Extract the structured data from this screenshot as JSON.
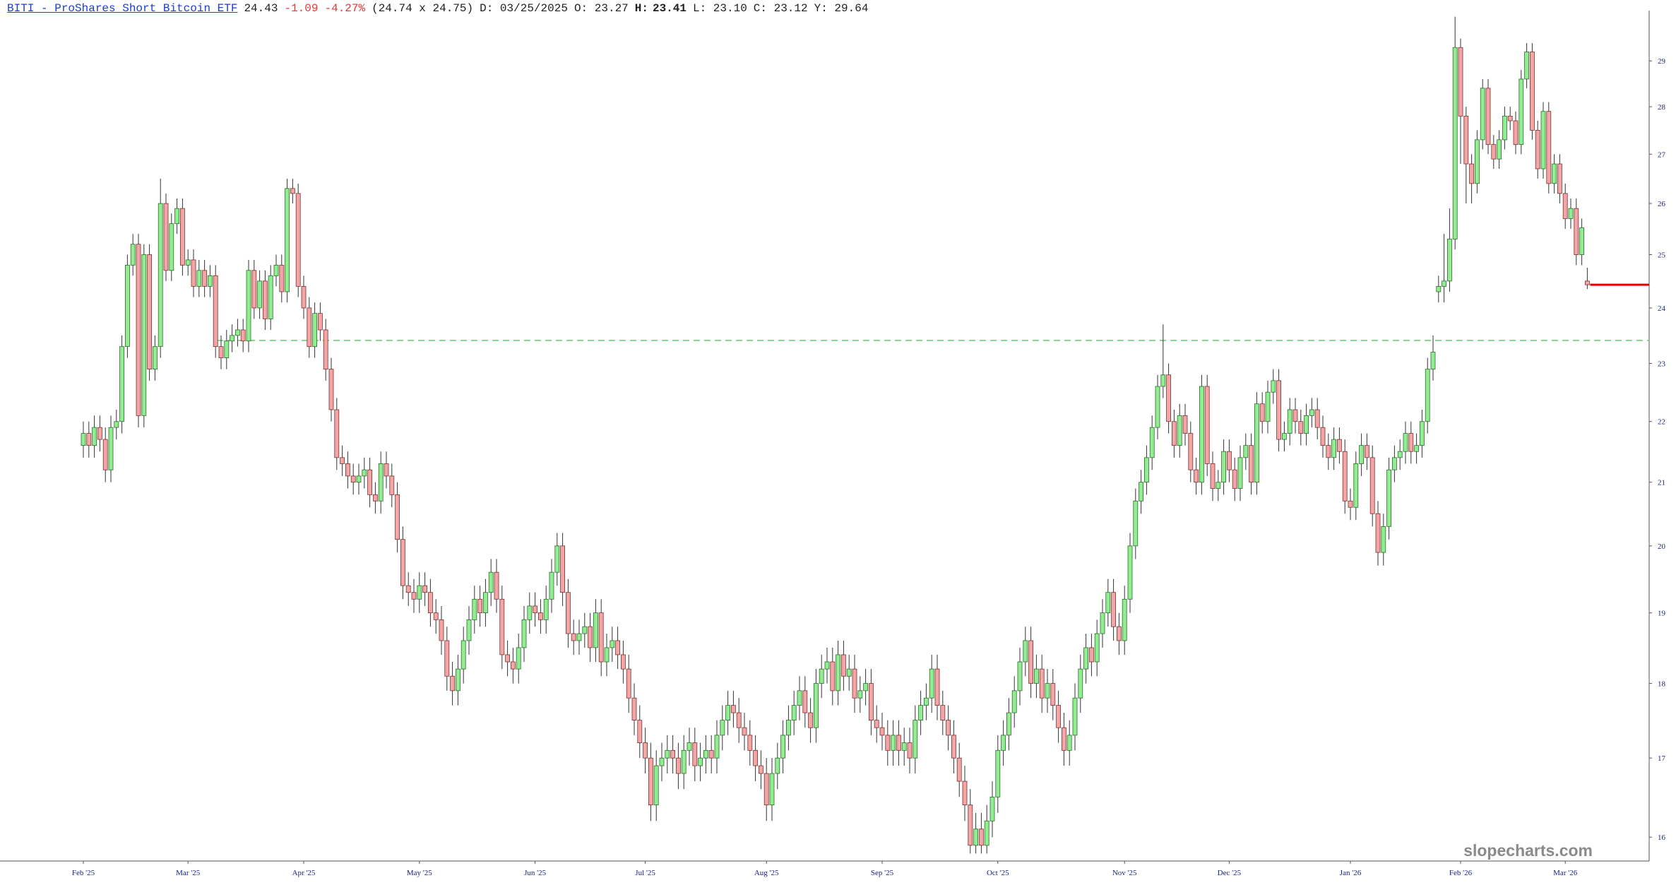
{
  "header": {
    "symbol_link": "BITI - ProShares Short Bitcoin ETF",
    "last": 24.43,
    "change": "-1.09",
    "change_pct": "-4.27%",
    "bid_ask": "(24.74 x 24.75)",
    "date": "D: 03/25/2025",
    "open": "O: 23.27",
    "high_label": "H:",
    "high": 23.41,
    "low": "L: 23.10",
    "close": "C: 23.12",
    "year_high": "Y: 29.64"
  },
  "chart_data": {
    "type": "candlestick",
    "watermark": "slopecharts.com",
    "log_scale": true,
    "up_color": "#90ee90",
    "down_color": "#f4a6a6",
    "last_line_color": "#e00000",
    "hover_line_color": "#66cc66",
    "ylim": [
      15.71,
      30.14
    ],
    "yticks": [
      16,
      17,
      18,
      19,
      20,
      21,
      22,
      23,
      24,
      25,
      26,
      27,
      28,
      29
    ],
    "categories": [
      "Feb '25",
      null,
      null,
      null,
      null,
      null,
      null,
      null,
      null,
      null,
      null,
      null,
      null,
      null,
      null,
      null,
      null,
      null,
      null,
      "Mar '25",
      null,
      null,
      null,
      null,
      null,
      null,
      null,
      null,
      null,
      null,
      null,
      null,
      null,
      null,
      null,
      null,
      null,
      null,
      null,
      null,
      "Apr '25",
      null,
      null,
      null,
      null,
      null,
      null,
      null,
      null,
      null,
      null,
      null,
      null,
      null,
      null,
      null,
      null,
      null,
      null,
      null,
      null,
      "May '25",
      null,
      null,
      null,
      null,
      null,
      null,
      null,
      null,
      null,
      null,
      null,
      null,
      null,
      null,
      null,
      null,
      null,
      null,
      null,
      null,
      "Jun '25",
      null,
      null,
      null,
      null,
      null,
      null,
      null,
      null,
      null,
      null,
      null,
      null,
      null,
      null,
      null,
      null,
      null,
      null,
      null,
      "Jul '25",
      null,
      null,
      null,
      null,
      null,
      null,
      null,
      null,
      null,
      null,
      null,
      null,
      null,
      null,
      null,
      null,
      null,
      null,
      null,
      null,
      null,
      "Aug '25",
      null,
      null,
      null,
      null,
      null,
      null,
      null,
      null,
      null,
      null,
      null,
      null,
      null,
      null,
      null,
      null,
      null,
      null,
      null,
      null,
      "Sep '25",
      null,
      null,
      null,
      null,
      null,
      null,
      null,
      null,
      null,
      null,
      null,
      null,
      null,
      null,
      null,
      null,
      null,
      null,
      null,
      null,
      "Oct '25",
      null,
      null,
      null,
      null,
      null,
      null,
      null,
      null,
      null,
      null,
      null,
      null,
      null,
      null,
      null,
      null,
      null,
      null,
      null,
      null,
      null,
      null,
      "Nov '25",
      null,
      null,
      null,
      null,
      null,
      null,
      null,
      null,
      null,
      null,
      null,
      null,
      null,
      null,
      null,
      null,
      null,
      null,
      "Dec '25",
      null,
      null,
      null,
      null,
      null,
      null,
      null,
      null,
      null,
      null,
      null,
      null,
      null,
      null,
      null,
      null,
      null,
      null,
      null,
      null,
      null,
      "Jan '26",
      null,
      null,
      null,
      null,
      null,
      null,
      null,
      null,
      null,
      null,
      null,
      null,
      null,
      null,
      null,
      null,
      null,
      null,
      null,
      "Feb '26",
      null,
      null,
      null,
      null,
      null,
      null,
      null,
      null,
      null,
      null,
      null,
      null,
      null,
      null,
      null,
      null,
      null,
      null,
      "Mar '26",
      null,
      null,
      null,
      null
    ],
    "open": [
      21.6,
      21.8,
      21.6,
      21.9,
      21.7,
      21.2,
      21.9,
      22.0,
      23.3,
      24.8,
      25.2,
      22.1,
      25.0,
      22.9,
      23.3,
      26.0,
      24.7,
      25.6,
      25.9,
      24.8,
      24.9,
      24.4,
      24.7,
      24.4,
      24.6,
      23.3,
      23.1,
      23.4,
      23.5,
      23.6,
      23.4,
      24.7,
      24.0,
      24.5,
      23.8,
      24.6,
      24.8,
      24.3,
      26.3,
      26.2,
      24.4,
      24.0,
      23.3,
      23.9,
      23.6,
      22.9,
      22.2,
      21.4,
      21.3,
      21.1,
      21.0,
      21.1,
      21.2,
      20.8,
      20.7,
      21.3,
      21.1,
      20.8,
      20.1,
      19.4,
      19.3,
      19.2,
      19.4,
      19.3,
      19.0,
      18.9,
      18.6,
      18.1,
      17.9,
      18.2,
      18.6,
      18.9,
      19.2,
      19.0,
      19.3,
      19.6,
      19.2,
      18.4,
      18.3,
      18.2,
      18.5,
      18.9,
      19.1,
      19.0,
      18.9,
      19.2,
      19.6,
      20.0,
      19.3,
      18.7,
      18.6,
      18.7,
      18.8,
      18.5,
      19.0,
      18.3,
      18.5,
      18.6,
      18.4,
      18.2,
      17.8,
      17.5,
      17.2,
      17.0,
      16.4,
      16.9,
      17.0,
      17.1,
      17.0,
      16.8,
      17.1,
      17.2,
      16.9,
      17.0,
      17.1,
      17.0,
      17.3,
      17.5,
      17.7,
      17.6,
      17.4,
      17.3,
      17.1,
      16.9,
      16.8,
      16.4,
      16.8,
      17.0,
      17.3,
      17.5,
      17.7,
      17.9,
      17.6,
      17.4,
      18.0,
      18.2,
      18.3,
      17.9,
      18.4,
      18.1,
      18.2,
      17.8,
      17.9,
      18.0,
      17.5,
      17.4,
      17.3,
      17.1,
      17.3,
      17.1,
      17.2,
      17.0,
      17.5,
      17.7,
      17.8,
      18.2,
      17.7,
      17.5,
      17.3,
      17.0,
      16.7,
      16.4,
      15.9,
      16.1,
      15.9,
      16.2,
      16.5,
      17.1,
      17.3,
      17.6,
      17.9,
      18.3,
      18.6,
      18.0,
      18.2,
      17.8,
      18.0,
      17.7,
      17.4,
      17.1,
      17.3,
      17.8,
      18.2,
      18.5,
      18.3,
      18.7,
      19.0,
      19.3,
      18.8,
      18.6,
      19.2,
      20.0,
      20.7,
      21.0,
      21.4,
      21.9,
      22.6,
      22.8,
      22.0,
      21.6,
      22.1,
      21.8,
      21.2,
      21.0,
      22.6,
      21.3,
      20.9,
      21.0,
      21.5,
      21.2,
      20.9,
      21.4,
      21.6,
      21.0,
      22.3,
      22.0,
      22.5,
      22.7,
      21.7,
      21.8,
      22.2,
      22.0,
      21.8,
      22.1,
      22.2,
      21.9,
      21.6,
      21.4,
      21.7,
      21.5,
      20.7,
      20.6,
      21.3,
      21.6,
      21.4,
      20.5,
      19.9,
      20.3,
      21.2,
      21.4,
      21.5,
      21.8,
      21.5,
      21.6,
      22.0,
      22.9,
      24.3,
      24.4,
      24.5,
      25.3,
      29.3,
      27.8,
      26.8,
      26.4,
      27.3,
      28.4,
      27.2,
      26.9,
      27.3,
      27.8,
      27.7,
      27.2,
      28.6,
      29.2,
      27.5,
      26.7,
      27.9,
      26.4,
      26.8,
      26.2,
      25.7,
      25.9,
      25.0,
      24.5
    ],
    "high": [
      22.0,
      22.0,
      22.1,
      22.1,
      21.9,
      22.1,
      22.2,
      23.5,
      25.0,
      25.4,
      25.4,
      25.2,
      25.2,
      23.5,
      26.5,
      26.2,
      25.8,
      26.1,
      26.1,
      25.1,
      25.1,
      24.9,
      24.9,
      24.8,
      24.8,
      23.5,
      23.6,
      23.7,
      23.8,
      23.8,
      24.9,
      24.9,
      24.7,
      24.7,
      24.8,
      25.0,
      25.0,
      26.5,
      26.5,
      26.4,
      24.6,
      24.2,
      24.1,
      24.1,
      23.8,
      23.1,
      22.4,
      21.6,
      21.5,
      21.3,
      21.3,
      21.4,
      21.4,
      21.0,
      21.5,
      21.5,
      21.3,
      21.0,
      20.3,
      19.6,
      19.5,
      19.6,
      19.6,
      19.5,
      19.2,
      19.1,
      18.8,
      18.3,
      18.4,
      18.8,
      19.1,
      19.4,
      19.4,
      19.5,
      19.8,
      19.8,
      19.4,
      18.6,
      18.5,
      18.7,
      19.1,
      19.3,
      19.3,
      19.2,
      19.4,
      19.8,
      20.2,
      20.2,
      19.5,
      18.9,
      18.9,
      19.0,
      19.0,
      19.2,
      19.2,
      18.7,
      18.8,
      18.8,
      18.6,
      18.4,
      18.0,
      17.7,
      17.4,
      17.2,
      17.1,
      17.2,
      17.3,
      17.3,
      17.2,
      17.3,
      17.4,
      17.4,
      17.2,
      17.3,
      17.3,
      17.5,
      17.7,
      17.9,
      17.9,
      17.8,
      17.6,
      17.5,
      17.3,
      17.1,
      17.0,
      17.0,
      17.2,
      17.5,
      17.7,
      17.9,
      18.1,
      18.1,
      17.8,
      18.2,
      18.4,
      18.5,
      18.5,
      18.6,
      18.6,
      18.4,
      18.4,
      18.1,
      18.2,
      18.2,
      17.7,
      17.6,
      17.5,
      17.5,
      17.5,
      17.4,
      17.4,
      17.7,
      17.9,
      18.0,
      18.4,
      18.4,
      17.9,
      17.7,
      17.5,
      17.2,
      16.9,
      16.6,
      16.3,
      16.3,
      16.4,
      16.7,
      17.3,
      17.5,
      17.8,
      18.1,
      18.5,
      18.8,
      18.8,
      18.4,
      18.4,
      18.2,
      18.2,
      17.9,
      17.6,
      17.5,
      18.0,
      18.4,
      18.7,
      18.7,
      18.9,
      19.2,
      19.5,
      19.5,
      19.0,
      19.4,
      20.2,
      20.9,
      21.2,
      21.6,
      22.1,
      22.8,
      23.7,
      23.0,
      22.2,
      22.3,
      22.3,
      22.0,
      21.4,
      22.8,
      22.8,
      21.5,
      21.2,
      21.7,
      21.7,
      21.4,
      21.6,
      21.8,
      21.8,
      22.5,
      22.5,
      22.7,
      22.9,
      22.9,
      22.0,
      22.4,
      22.4,
      22.2,
      22.3,
      22.4,
      22.4,
      22.1,
      21.8,
      21.9,
      21.9,
      21.7,
      20.9,
      21.5,
      21.8,
      21.8,
      21.6,
      20.7,
      20.5,
      21.4,
      21.6,
      21.7,
      22.0,
      22.0,
      21.8,
      22.2,
      23.1,
      23.5,
      24.6,
      25.4,
      25.9,
      30.0,
      29.5,
      28.0,
      27.0,
      27.5,
      28.6,
      28.6,
      27.4,
      27.5,
      28.0,
      28.0,
      27.9,
      28.8,
      29.4,
      29.4,
      27.7,
      28.1,
      28.1,
      27.0,
      27.0,
      26.4,
      26.1,
      26.1,
      25.7,
      24.75
    ],
    "low": [
      21.4,
      21.4,
      21.4,
      21.5,
      21.0,
      21.0,
      21.7,
      21.8,
      23.1,
      24.6,
      21.9,
      21.9,
      22.7,
      22.7,
      23.1,
      24.5,
      24.5,
      25.4,
      24.6,
      24.6,
      24.2,
      24.2,
      24.2,
      24.2,
      23.1,
      22.9,
      22.9,
      23.2,
      23.3,
      23.2,
      23.2,
      23.8,
      23.8,
      23.6,
      23.6,
      24.4,
      24.1,
      24.1,
      26.0,
      24.2,
      23.8,
      23.1,
      23.1,
      23.4,
      22.7,
      22.0,
      21.2,
      21.1,
      20.9,
      20.8,
      20.8,
      20.9,
      20.6,
      20.5,
      20.5,
      20.9,
      20.6,
      19.9,
      19.2,
      19.1,
      19.0,
      19.0,
      19.1,
      18.8,
      18.7,
      18.4,
      17.9,
      17.7,
      17.7,
      18.0,
      18.4,
      18.7,
      18.8,
      18.8,
      19.1,
      19.0,
      18.2,
      18.1,
      18.0,
      18.0,
      18.3,
      18.7,
      18.8,
      18.7,
      18.7,
      19.0,
      19.4,
      19.1,
      18.5,
      18.4,
      18.4,
      18.5,
      18.3,
      18.3,
      18.1,
      18.1,
      18.3,
      18.2,
      18.0,
      17.6,
      17.3,
      17.0,
      16.8,
      16.2,
      16.2,
      16.7,
      16.8,
      16.8,
      16.6,
      16.6,
      16.9,
      16.7,
      16.7,
      16.8,
      16.8,
      16.8,
      17.1,
      17.3,
      17.4,
      17.2,
      17.1,
      16.9,
      16.7,
      16.6,
      16.2,
      16.2,
      16.6,
      16.8,
      17.1,
      17.3,
      17.5,
      17.4,
      17.2,
      17.2,
      17.8,
      18.0,
      17.7,
      17.7,
      17.9,
      17.9,
      17.6,
      17.6,
      17.7,
      17.3,
      17.2,
      17.1,
      16.9,
      16.9,
      16.9,
      16.9,
      16.8,
      16.8,
      17.3,
      17.5,
      17.6,
      17.5,
      17.3,
      17.1,
      16.8,
      16.5,
      16.2,
      15.8,
      15.8,
      15.8,
      15.8,
      16.0,
      16.3,
      16.9,
      17.1,
      17.4,
      17.7,
      18.1,
      17.8,
      17.8,
      17.6,
      17.6,
      17.5,
      17.2,
      16.9,
      16.9,
      17.1,
      17.6,
      18.0,
      18.1,
      18.1,
      18.5,
      18.8,
      18.6,
      18.4,
      18.4,
      19.0,
      19.8,
      20.5,
      20.8,
      21.2,
      21.7,
      22.4,
      21.8,
      21.4,
      21.4,
      21.6,
      21.0,
      20.8,
      20.8,
      21.1,
      20.7,
      20.7,
      20.8,
      21.0,
      20.7,
      20.7,
      21.2,
      20.8,
      20.8,
      21.8,
      21.8,
      22.3,
      21.5,
      21.5,
      21.6,
      21.8,
      21.6,
      21.6,
      21.9,
      21.7,
      21.4,
      21.2,
      21.2,
      21.3,
      20.5,
      20.4,
      20.4,
      21.1,
      21.2,
      20.3,
      19.7,
      19.7,
      20.1,
      21.0,
      21.2,
      21.3,
      21.3,
      21.3,
      21.4,
      21.8,
      22.7,
      24.1,
      24.1,
      24.3,
      25.1,
      26.8,
      26.0,
      26.0,
      26.2,
      27.1,
      27.0,
      26.7,
      26.7,
      27.1,
      27.5,
      27.0,
      27.0,
      28.4,
      27.3,
      26.5,
      26.5,
      26.2,
      26.2,
      26.0,
      25.5,
      25.5,
      24.8,
      24.8,
      24.35
    ],
    "close": [
      21.8,
      21.6,
      21.9,
      21.7,
      21.2,
      21.9,
      22.0,
      23.3,
      24.8,
      25.2,
      22.1,
      25.0,
      22.9,
      23.3,
      26.0,
      24.7,
      25.6,
      25.9,
      24.8,
      24.9,
      24.4,
      24.7,
      24.4,
      24.6,
      23.3,
      23.1,
      23.4,
      23.5,
      23.6,
      23.4,
      24.7,
      24.0,
      24.5,
      23.8,
      24.6,
      24.8,
      24.3,
      26.3,
      26.2,
      24.4,
      24.0,
      23.3,
      23.9,
      23.6,
      22.9,
      22.2,
      21.4,
      21.3,
      21.1,
      21.0,
      21.1,
      21.2,
      20.8,
      20.7,
      21.3,
      21.1,
      20.8,
      20.1,
      19.4,
      19.3,
      19.2,
      19.4,
      19.3,
      19.0,
      18.9,
      18.6,
      18.1,
      17.9,
      18.2,
      18.6,
      18.9,
      19.2,
      19.0,
      19.3,
      19.6,
      19.2,
      18.4,
      18.3,
      18.2,
      18.5,
      18.9,
      19.1,
      19.0,
      18.9,
      19.2,
      19.6,
      20.0,
      19.3,
      18.7,
      18.6,
      18.7,
      18.8,
      18.5,
      19.0,
      18.3,
      18.5,
      18.6,
      18.4,
      18.2,
      17.8,
      17.5,
      17.2,
      17.0,
      16.4,
      16.9,
      17.0,
      17.1,
      17.0,
      16.8,
      17.1,
      17.2,
      16.9,
      17.0,
      17.1,
      17.0,
      17.3,
      17.5,
      17.7,
      17.6,
      17.4,
      17.3,
      17.1,
      16.9,
      16.8,
      16.4,
      16.8,
      17.0,
      17.3,
      17.5,
      17.7,
      17.9,
      17.6,
      17.4,
      18.0,
      18.2,
      18.3,
      17.9,
      18.4,
      18.1,
      18.2,
      17.8,
      17.9,
      18.0,
      17.5,
      17.4,
      17.3,
      17.1,
      17.3,
      17.1,
      17.2,
      17.0,
      17.5,
      17.7,
      17.8,
      18.2,
      17.7,
      17.5,
      17.3,
      17.0,
      16.7,
      16.4,
      15.9,
      16.1,
      15.9,
      16.2,
      16.5,
      17.1,
      17.3,
      17.6,
      17.9,
      18.3,
      18.6,
      18.0,
      18.2,
      17.8,
      18.0,
      17.7,
      17.4,
      17.1,
      17.3,
      17.8,
      18.2,
      18.5,
      18.3,
      18.7,
      19.0,
      19.3,
      18.8,
      18.6,
      19.2,
      20.0,
      20.7,
      21.0,
      21.4,
      21.9,
      22.6,
      22.8,
      22.0,
      21.6,
      22.1,
      21.8,
      21.2,
      21.0,
      22.6,
      21.3,
      20.9,
      21.0,
      21.5,
      21.2,
      20.9,
      21.4,
      21.6,
      21.0,
      22.3,
      22.0,
      22.5,
      22.7,
      21.7,
      21.8,
      22.2,
      22.0,
      21.8,
      22.1,
      22.2,
      21.9,
      21.6,
      21.4,
      21.7,
      21.5,
      20.7,
      20.6,
      21.3,
      21.6,
      21.4,
      20.5,
      19.9,
      20.3,
      21.2,
      21.4,
      21.5,
      21.8,
      21.5,
      21.6,
      22.0,
      22.9,
      23.2,
      24.4,
      24.5,
      25.3,
      29.3,
      27.8,
      26.8,
      26.4,
      27.3,
      28.4,
      27.2,
      26.9,
      27.3,
      27.8,
      27.7,
      27.2,
      28.6,
      29.2,
      27.5,
      26.7,
      27.9,
      26.4,
      26.8,
      26.2,
      25.7,
      25.9,
      25.0,
      25.52,
      24.43
    ]
  }
}
